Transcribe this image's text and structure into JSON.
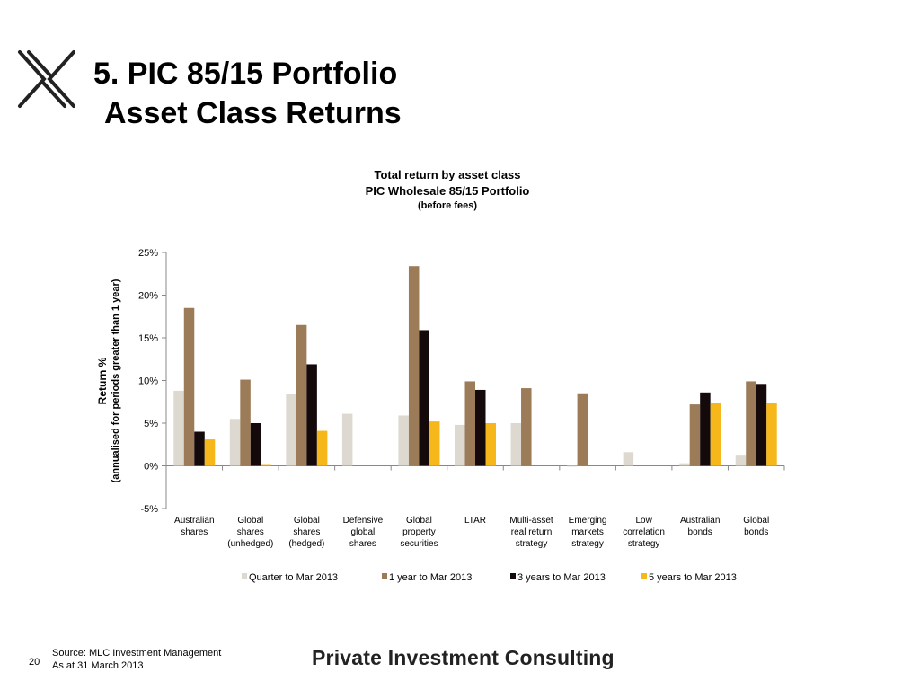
{
  "slide": {
    "title_line1": "5. PIC 85/15 Portfolio",
    "title_line2": "Asset Class Returns",
    "source": "Source: MLC Investment Management",
    "as_at": "As at 31 March 2013",
    "page_number": "20",
    "brand": "Private Investment Consulting"
  },
  "chart_data": {
    "type": "bar",
    "title": [
      "Total return by asset class",
      "PIC Wholesale 85/15 Portfolio",
      "(before fees)"
    ],
    "ylabel": [
      "Return %",
      "(annualised for periods greater than 1 year)"
    ],
    "xlabel": "",
    "ylim": [
      -5,
      25
    ],
    "yticks": [
      -5,
      0,
      5,
      10,
      15,
      20,
      25
    ],
    "ytick_labels": [
      "-5%",
      "0%",
      "5%",
      "10%",
      "15%",
      "20%",
      "25%"
    ],
    "grid": false,
    "legend_position": "bottom",
    "categories": [
      [
        "Australian",
        "shares"
      ],
      [
        "Global",
        "shares",
        "(unhedged)"
      ],
      [
        "Global",
        "shares",
        "(hedged)"
      ],
      [
        "Defensive",
        "global",
        "shares"
      ],
      [
        "Global",
        "property",
        "securities"
      ],
      [
        "LTAR"
      ],
      [
        "Multi-asset",
        "real return",
        "strategy"
      ],
      [
        "Emerging",
        "markets",
        "strategy"
      ],
      [
        "Low",
        "correlation",
        "strategy"
      ],
      [
        "Australian",
        "bonds"
      ],
      [
        "Global",
        "bonds"
      ]
    ],
    "series": [
      {
        "name": "Quarter to  Mar 2013",
        "color": "#ddd9d0",
        "values": [
          8.8,
          5.5,
          8.4,
          6.1,
          5.9,
          4.8,
          5.0,
          -0.1,
          1.6,
          0.3,
          1.3
        ]
      },
      {
        "name": "1 year to Mar 2013",
        "color": "#9c7b58",
        "values": [
          18.5,
          10.1,
          16.5,
          null,
          23.4,
          9.9,
          9.1,
          8.5,
          null,
          7.2,
          9.9
        ]
      },
      {
        "name": "3 years to Mar 2013",
        "color": "#140a0c",
        "values": [
          4.0,
          5.0,
          11.9,
          null,
          15.9,
          8.9,
          null,
          null,
          null,
          8.6,
          9.6
        ]
      },
      {
        "name": "5 years to Mar 2013",
        "color": "#f6b71b",
        "values": [
          3.1,
          0.1,
          4.1,
          null,
          5.2,
          5.0,
          null,
          null,
          null,
          7.4,
          7.4
        ]
      }
    ]
  }
}
